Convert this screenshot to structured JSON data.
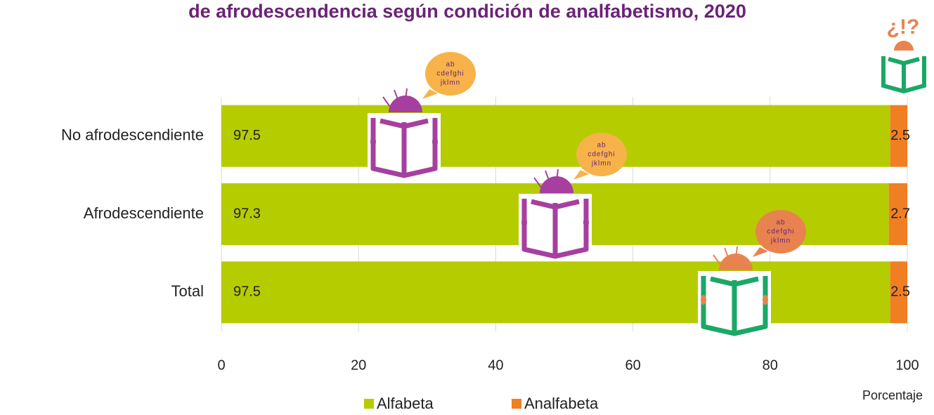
{
  "chart_data": {
    "type": "stacked-barh",
    "title": "de afrodescendencia según condición de analfabetismo, 2020",
    "categories": [
      "No afrodescendiente",
      "Afrodescendiente",
      "Total"
    ],
    "series": [
      {
        "name": "Alfabeta",
        "color": "#b5cc00",
        "values": [
          97.5,
          97.3,
          97.5
        ]
      },
      {
        "name": "Analfabeta",
        "color": "#f07f24",
        "values": [
          2.5,
          2.7,
          2.5
        ]
      }
    ],
    "xlim": [
      0,
      100
    ],
    "xticks": [
      0,
      20,
      40,
      60,
      80,
      100
    ],
    "grid": true,
    "xlabel": "Porcentaje",
    "legend": "bottom",
    "icon_text": [
      "ab",
      "cdefghi",
      "jklmn"
    ],
    "corner_icon_text": "¿!?"
  }
}
